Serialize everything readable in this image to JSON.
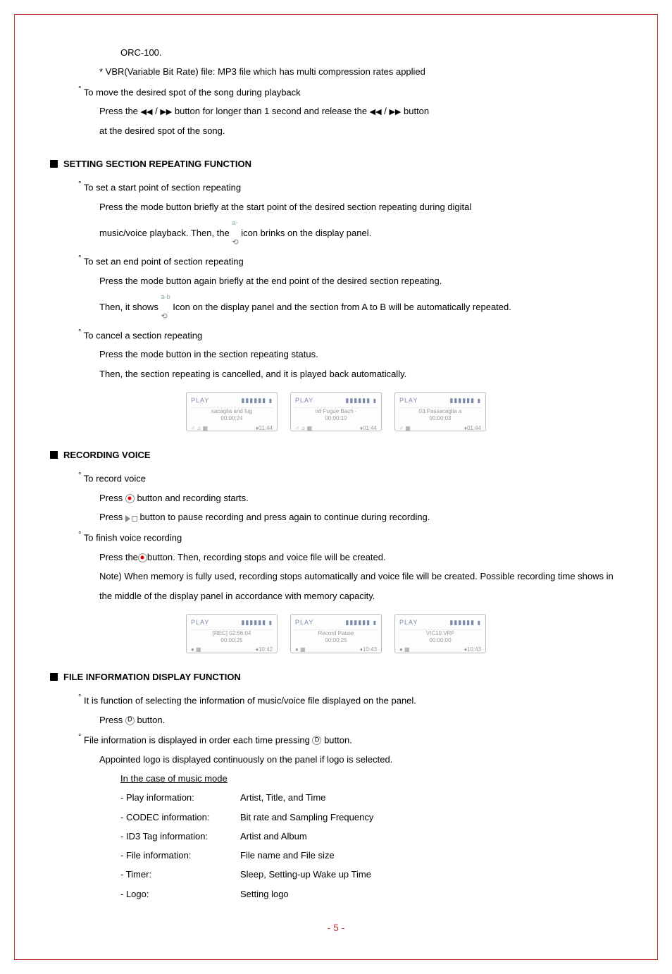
{
  "orc_line": "ORC-100.",
  "vbr_line": "* VBR(Variable Bit Rate) file: MP3 file which has multi compression rates applied",
  "move_spot_header": "To move the desired spot of the song during playback",
  "move_spot_l1a": "Press the ",
  "move_spot_l1b": " button for longer than 1 second and release the ",
  "move_spot_l1c": " button",
  "move_spot_l2": "at the desired spot of the song.",
  "setting_header": "SETTING SECTION REPEATING FUNCTION",
  "set_start": "To set a start point of section repeating",
  "set_start_l1": "Press the mode button briefly at the start point of the desired section repeating during digital",
  "set_start_l2a": "music/voice playback.  Then, the ",
  "set_start_l2b": " icon brinks on the display panel.",
  "set_end": "To set an end point of section repeating",
  "set_end_l1": "Press the mode button again briefly at the end point of the desired section repeating.",
  "set_end_l2a": "Then, it shows ",
  "set_end_l2b": " Icon on the display panel and the section from A to B will be automatically repeated.",
  "cancel": "To cancel a section repeating",
  "cancel_l1": "Press the mode button in the section repeating status.",
  "cancel_l2": "Then, the section repeating is cancelled, and it is played back automatically.",
  "lcd1": {
    "top_left": "PLAY",
    "line1": "sacaglia and fug",
    "line2": "00:00:24",
    "bot_left": "♂ ♫ ▦",
    "bot_right": "♦01:44"
  },
  "lcd2": {
    "top_left": "PLAY",
    "line1": "nd Fugue Bach -",
    "line2": "00:00:10",
    "bot_left": "♂ ♫ ▦",
    "bot_right": "♦01:44"
  },
  "lcd3": {
    "top_left": "PLAY",
    "line1": "03.Passacaglia a",
    "line2": "00:00:03",
    "bot_left": "♂     ▦",
    "bot_right": "♦01:44"
  },
  "recording_header": "RECORDING VOICE",
  "rec_voice": "To record voice",
  "rec_l1a": "Press ",
  "rec_l1b": " button and recording starts.",
  "rec_l2a": "Press ",
  "rec_l2b": " button to pause recording and press again to continue during recording.",
  "finish_rec": "To finish voice recording",
  "finish_l1a": "Press the",
  "finish_l1b": "button.  Then, recording stops and voice file will be created.",
  "finish_note": "Note) When memory is fully used, recording stops automatically and voice file will be created. Possible recording time shows in the middle of the display panel in accordance with memory capacity.",
  "lcd4": {
    "top_left": "PLAY",
    "line1": "[REC]  02:56:04",
    "line2": "00:00:25",
    "bot_left": "●     ▦",
    "bot_right": "♦10:42"
  },
  "lcd5": {
    "top_left": "PLAY",
    "line1": "Record Pause",
    "line2": "00:00:25",
    "bot_left": "●     ▦",
    "bot_right": "♦10:43"
  },
  "lcd6": {
    "top_left": "PLAY",
    "line1": "VIC10.VRF",
    "line2": "00:00:00",
    "bot_left": "●     ▦",
    "bot_right": "♦10:43"
  },
  "file_info_header": "FILE INFORMATION DISPLAY FUNCTION",
  "fi_l1": "It is function of selecting the information of music/voice file displayed on the panel.",
  "fi_l2a": "Press ",
  "fi_l2b": " button.",
  "fi_l3a": "File information is displayed in order each time pressing ",
  "fi_l3b": " button.",
  "fi_l4": "Appointed logo is displayed continuously on the panel if logo is selected.",
  "fi_case": "In the case of music mode",
  "rows": [
    {
      "label": "- Play information:",
      "value": "Artist, Title, and Time"
    },
    {
      "label": "- CODEC information:",
      "value": "Bit rate and Sampling Frequency"
    },
    {
      "label": "- ID3 Tag information:",
      "value": "Artist and Album"
    },
    {
      "label": "- File information:",
      "value": "File name and File size"
    },
    {
      "label": "- Timer:",
      "value": "Sleep, Setting-up Wake up Time"
    },
    {
      "label": "- Logo:",
      "value": "Setting logo"
    }
  ],
  "page_num": "- 5 -"
}
